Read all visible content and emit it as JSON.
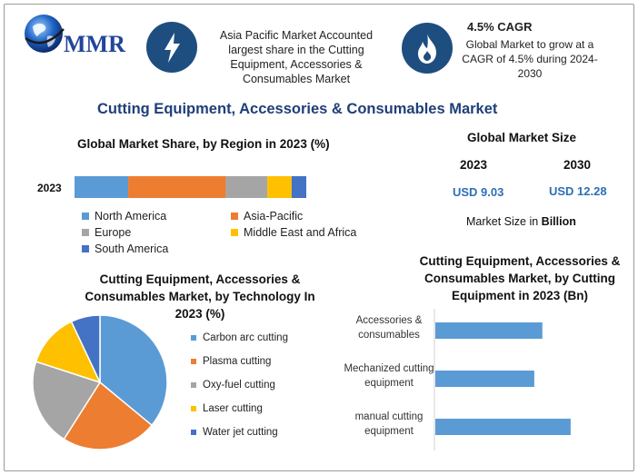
{
  "brand": {
    "name": "MMR"
  },
  "highlights": {
    "region": "Asia Pacific Market Accounted largest share in the Cutting Equipment, Accessories & Consumables Market",
    "cagr_title": "4.5% CAGR",
    "cagr_text": "Global Market to grow at a CAGR of 4.5% during 2024-2030"
  },
  "title": "Cutting Equipment, Accessories & Consumables Market",
  "market_size": {
    "title": "Global Market Size",
    "years": [
      "2023",
      "2030"
    ],
    "values": [
      "USD 9.03",
      "USD 12.28"
    ],
    "note_prefix": "Market Size in ",
    "note_unit": "Billion"
  },
  "colors": {
    "blue": "#5b9bd5",
    "orange": "#ed7d31",
    "gray": "#a5a5a5",
    "yellow": "#ffc000",
    "darkblue": "#4472c4",
    "icon_bg": "#1e4e80"
  },
  "chart_data": [
    {
      "type": "bar",
      "orientation": "horizontal-stacked",
      "title": "Global Market Share, by Region in 2023 (%)",
      "categories": [
        "2023"
      ],
      "series": [
        {
          "name": "North America",
          "values": [
            22
          ]
        },
        {
          "name": "Asia-Pacific",
          "values": [
            40
          ]
        },
        {
          "name": "Europe",
          "values": [
            17
          ]
        },
        {
          "name": "Middle East and Africa",
          "values": [
            10
          ]
        },
        {
          "name": "South America",
          "values": [
            6
          ]
        }
      ],
      "legend": "bottom"
    },
    {
      "type": "pie",
      "title": "Cutting Equipment, Accessories & Consumables Market, by Technology In 2023 (%)",
      "labels": [
        "Carbon arc cutting",
        "Plasma cutting",
        "Oxy-fuel cutting",
        "Laser cutting",
        "Water jet cutting"
      ],
      "values": [
        36,
        23,
        21,
        13,
        7
      ],
      "legend": "right"
    },
    {
      "type": "bar",
      "orientation": "horizontal",
      "title": "Cutting Equipment, Accessories & Consumables Market, by Cutting Equipment in 2023 (Bn)",
      "categories": [
        "Accessories & consumables",
        "Mechanized cutting equipment",
        "manual cutting equipment"
      ],
      "category_lines": [
        [
          "Accessories &",
          "consumables"
        ],
        [
          "Mechanized cutting",
          "equipment"
        ],
        [
          "manual cutting",
          "equipment"
        ]
      ],
      "values": [
        2.65,
        2.45,
        3.35
      ],
      "xlim": [
        0,
        4.5
      ],
      "grid": false
    }
  ]
}
